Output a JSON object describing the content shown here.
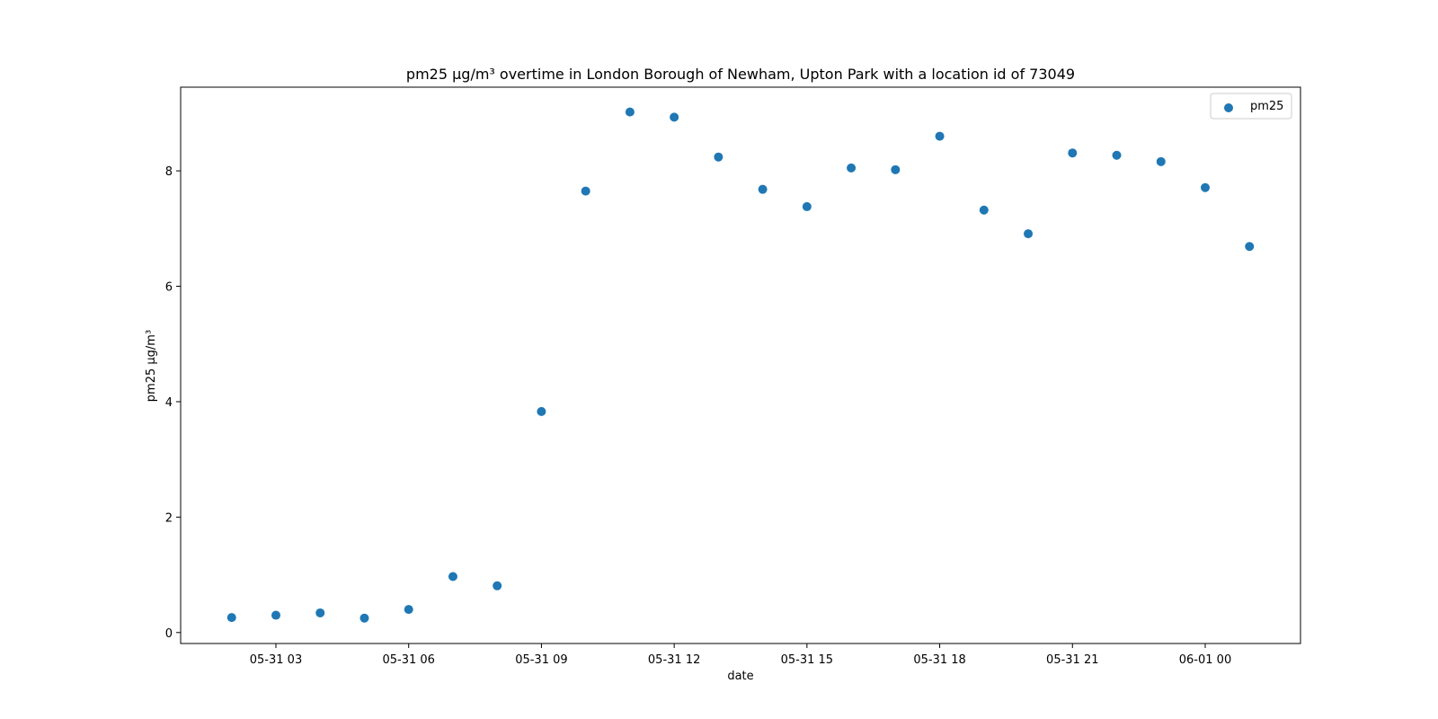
{
  "chart_data": {
    "type": "scatter",
    "title": "pm25 µg/m³ overtime in London Borough of Newham, Upton Park with a location id of 73049",
    "xlabel": "date",
    "ylabel": "pm25 µg/m³",
    "x_ticks": [
      "05-31 03",
      "05-31 06",
      "05-31 09",
      "05-31 12",
      "05-31 15",
      "05-31 18",
      "05-31 21",
      "06-01 00"
    ],
    "y_ticks": [
      "0",
      "2",
      "4",
      "6",
      "8"
    ],
    "ylim": [
      -0.19,
      9.45
    ],
    "legend_position": "top-right",
    "grid": false,
    "series": [
      {
        "name": "pm25",
        "color": "#1f77b4",
        "x": [
          "05-31 02",
          "05-31 03",
          "05-31 04",
          "05-31 05",
          "05-31 06",
          "05-31 07",
          "05-31 08",
          "05-31 09",
          "05-31 10",
          "05-31 11",
          "05-31 12",
          "05-31 13",
          "05-31 14",
          "05-31 15",
          "05-31 16",
          "05-31 17",
          "05-31 18",
          "05-31 19",
          "05-31 20",
          "05-31 21",
          "05-31 22",
          "05-31 23",
          "06-01 00",
          "06-01 01"
        ],
        "values": [
          0.26,
          0.3,
          0.34,
          0.25,
          0.4,
          0.97,
          0.81,
          3.83,
          7.65,
          9.02,
          8.93,
          8.24,
          7.68,
          7.38,
          8.05,
          8.02,
          8.6,
          7.32,
          6.91,
          8.31,
          8.27,
          8.16,
          7.71,
          6.69
        ]
      }
    ]
  }
}
